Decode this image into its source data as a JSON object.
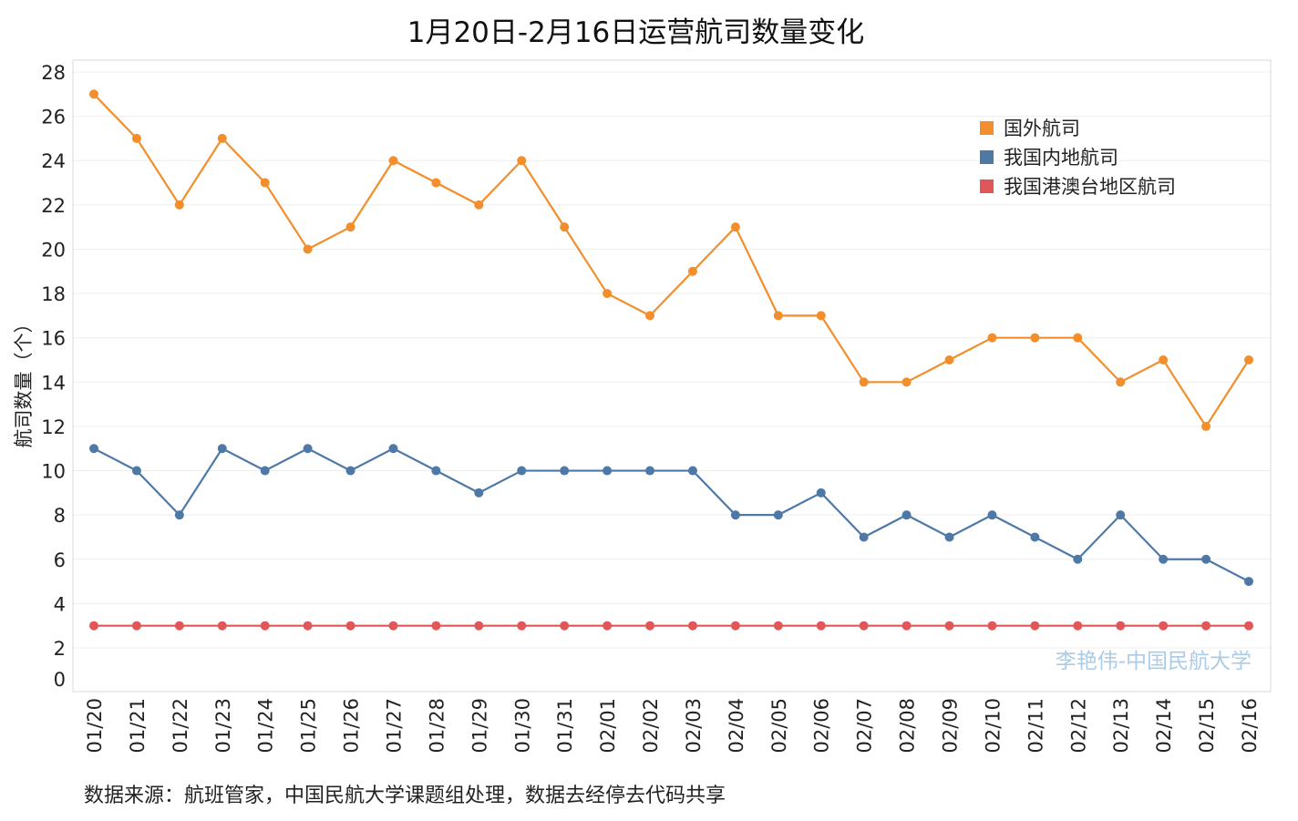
{
  "chart_data": {
    "type": "line",
    "title": "1月20日-2月16日运营航司数量变化",
    "ylabel": "航司数量（个）",
    "xlabel": "",
    "ylim": [
      0,
      28
    ],
    "yticks": [
      0,
      2,
      4,
      6,
      8,
      10,
      12,
      14,
      16,
      18,
      20,
      22,
      24,
      26,
      28
    ],
    "categories": [
      "01/20",
      "01/21",
      "01/22",
      "01/23",
      "01/24",
      "01/25",
      "01/26",
      "01/27",
      "01/28",
      "01/29",
      "01/30",
      "01/31",
      "02/01",
      "02/02",
      "02/03",
      "02/04",
      "02/05",
      "02/06",
      "02/07",
      "02/08",
      "02/09",
      "02/10",
      "02/11",
      "02/12",
      "02/13",
      "02/14",
      "02/15",
      "02/16"
    ],
    "series": [
      {
        "name": "国外航司",
        "color": "#F28E2B",
        "values": [
          27,
          25,
          22,
          25,
          23,
          20,
          21,
          24,
          23,
          22,
          24,
          21,
          18,
          17,
          19,
          21,
          17,
          17,
          14,
          14,
          15,
          16,
          16,
          16,
          14,
          15,
          12,
          15
        ]
      },
      {
        "name": "我国内地航司",
        "color": "#4E79A7",
        "values": [
          11,
          10,
          8,
          11,
          10,
          11,
          10,
          11,
          10,
          9,
          10,
          10,
          10,
          10,
          10,
          8,
          8,
          9,
          7,
          8,
          7,
          8,
          7,
          6,
          8,
          6,
          6,
          5
        ]
      },
      {
        "name": "我国港澳台地区航司",
        "color": "#E15759",
        "values": [
          3,
          3,
          3,
          3,
          3,
          3,
          3,
          3,
          3,
          3,
          3,
          3,
          3,
          3,
          3,
          3,
          3,
          3,
          3,
          3,
          3,
          3,
          3,
          3,
          3,
          3,
          3,
          3
        ]
      }
    ],
    "legend_position": "top-right",
    "grid": true,
    "watermark": "李艳伟-中国民航大学"
  },
  "source_note": "数据来源：航班管家，中国民航大学课题组处理，数据去经停去代码共享"
}
